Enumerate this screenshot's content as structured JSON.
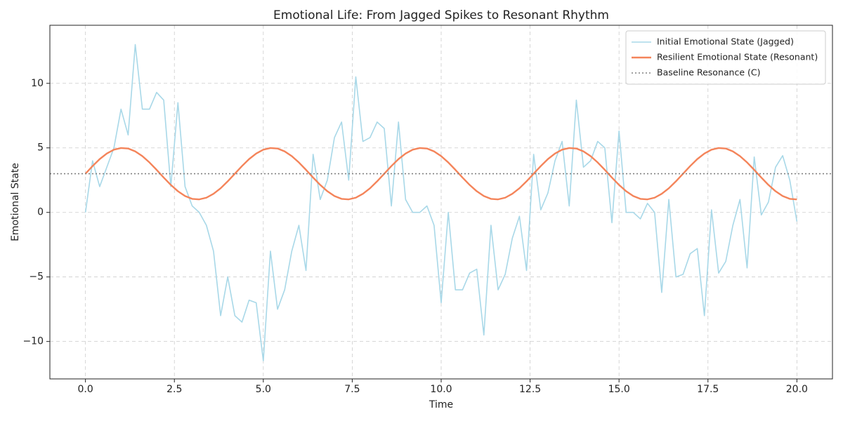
{
  "chart_data": {
    "type": "line",
    "title": "Emotional Life: From Jagged Spikes to Resonant Rhythm",
    "x_label": "Time",
    "y_label": "Emotional State",
    "x": [
      0,
      0.2,
      0.4,
      0.6,
      0.8,
      1,
      1.2,
      1.4,
      1.6,
      1.8,
      2,
      2.2,
      2.4,
      2.6,
      2.8,
      3,
      3.2,
      3.4,
      3.6,
      3.8,
      4,
      4.2,
      4.4,
      4.6,
      4.8,
      5,
      5.2,
      5.4,
      5.6,
      5.8,
      6,
      6.2,
      6.4,
      6.6,
      6.8,
      7,
      7.2,
      7.4,
      7.6,
      7.8,
      8,
      8.2,
      8.4,
      8.6,
      8.8,
      9,
      9.2,
      9.4,
      9.6,
      9.8,
      10,
      10.2,
      10.4,
      10.6,
      10.8,
      11,
      11.2,
      11.4,
      11.6,
      11.8,
      12,
      12.2,
      12.4,
      12.6,
      12.8,
      13,
      13.2,
      13.4,
      13.6,
      13.8,
      14,
      14.2,
      14.4,
      14.6,
      14.8,
      15,
      15.2,
      15.4,
      15.6,
      15.8,
      16,
      16.2,
      16.4,
      16.6,
      16.8,
      17,
      17.2,
      17.4,
      17.6,
      17.8,
      18,
      18.2,
      18.4,
      18.6,
      18.8,
      19,
      19.2,
      19.4,
      19.6,
      19.8,
      20
    ],
    "series": [
      {
        "name": "Initial Emotional State (Jagged)",
        "color": "#a8d8e8",
        "width": 1.6,
        "values": [
          0,
          4,
          2,
          3.5,
          5,
          8,
          6,
          13,
          8,
          8,
          9.3,
          8.7,
          2,
          8.5,
          2,
          0.5,
          0,
          -1,
          -3,
          -8,
          -5,
          -8,
          -8.5,
          -6.8,
          -7,
          -11.5,
          -3,
          -7.5,
          -6,
          -3,
          -1,
          -4.5,
          4.5,
          1,
          2.5,
          5.8,
          7,
          2.5,
          10.5,
          5.5,
          5.8,
          7,
          6.5,
          0.5,
          7,
          1,
          0,
          0,
          0.5,
          -1,
          -7,
          0,
          -6,
          -6,
          -4.7,
          -4.4,
          -9.5,
          -1,
          -6,
          -4.8,
          -2,
          -0.3,
          -4.5,
          4.5,
          0.2,
          1.5,
          4,
          5.5,
          0.5,
          8.7,
          3.5,
          4,
          5.5,
          5,
          -0.8,
          6.3,
          0,
          0,
          -0.5,
          0.7,
          0,
          -6.2,
          1,
          -5,
          -4.8,
          -3.2,
          -2.8,
          -8,
          0.2,
          -4.7,
          -3.8,
          -1,
          1,
          -4.3,
          4.3,
          -0.2,
          0.8,
          3.5,
          4.4,
          2.5,
          -0.7
        ]
      },
      {
        "name": "Resilient Emotional State (Resonant)",
        "color": "#f4845a",
        "width": 2.4,
        "values": [
          3,
          3.59,
          4.13,
          4.56,
          4.86,
          4.99,
          4.95,
          4.73,
          4.36,
          3.87,
          3.3,
          2.7,
          2.13,
          1.64,
          1.27,
          1.05,
          1.01,
          1.14,
          1.44,
          1.87,
          2.41,
          3,
          3.59,
          4.13,
          4.56,
          4.86,
          4.99,
          4.95,
          4.73,
          4.36,
          3.87,
          3.3,
          2.7,
          2.13,
          1.64,
          1.27,
          1.05,
          1.01,
          1.14,
          1.44,
          1.87,
          2.41,
          3,
          3.59,
          4.13,
          4.56,
          4.86,
          4.99,
          4.95,
          4.73,
          4.36,
          3.87,
          3.3,
          2.7,
          2.13,
          1.64,
          1.27,
          1.05,
          1.01,
          1.14,
          1.44,
          1.87,
          2.41,
          3,
          3.59,
          4.13,
          4.56,
          4.86,
          4.99,
          4.95,
          4.73,
          4.36,
          3.87,
          3.3,
          2.7,
          2.13,
          1.64,
          1.27,
          1.05,
          1.01,
          1.14,
          1.44,
          1.87,
          2.41,
          3,
          3.59,
          4.13,
          4.56,
          4.86,
          4.99,
          4.95,
          4.73,
          4.36,
          3.87,
          3.3,
          2.7,
          2.13,
          1.64,
          1.27,
          1.05,
          1.01
        ]
      }
    ],
    "baseline": {
      "name": "Baseline Resonance (C)",
      "value": 3,
      "color": "#808080"
    },
    "xlim": [
      -1,
      21
    ],
    "ylim": [
      -12.9,
      14.5
    ],
    "xticks": [
      {
        "value": 0,
        "label": "0.0"
      },
      2.5,
      {
        "value": 5,
        "label": "5.0"
      },
      7.5,
      {
        "value": 10,
        "label": "10.0"
      },
      12.5,
      {
        "value": 15,
        "label": "15.0"
      },
      17.5,
      {
        "value": 20,
        "label": "20.0"
      }
    ],
    "yticks": [
      {
        "value": -10,
        "label": "−10"
      },
      {
        "value": -5,
        "label": "−5"
      },
      0,
      5,
      10
    ],
    "grid": true,
    "legend": "upper right"
  }
}
